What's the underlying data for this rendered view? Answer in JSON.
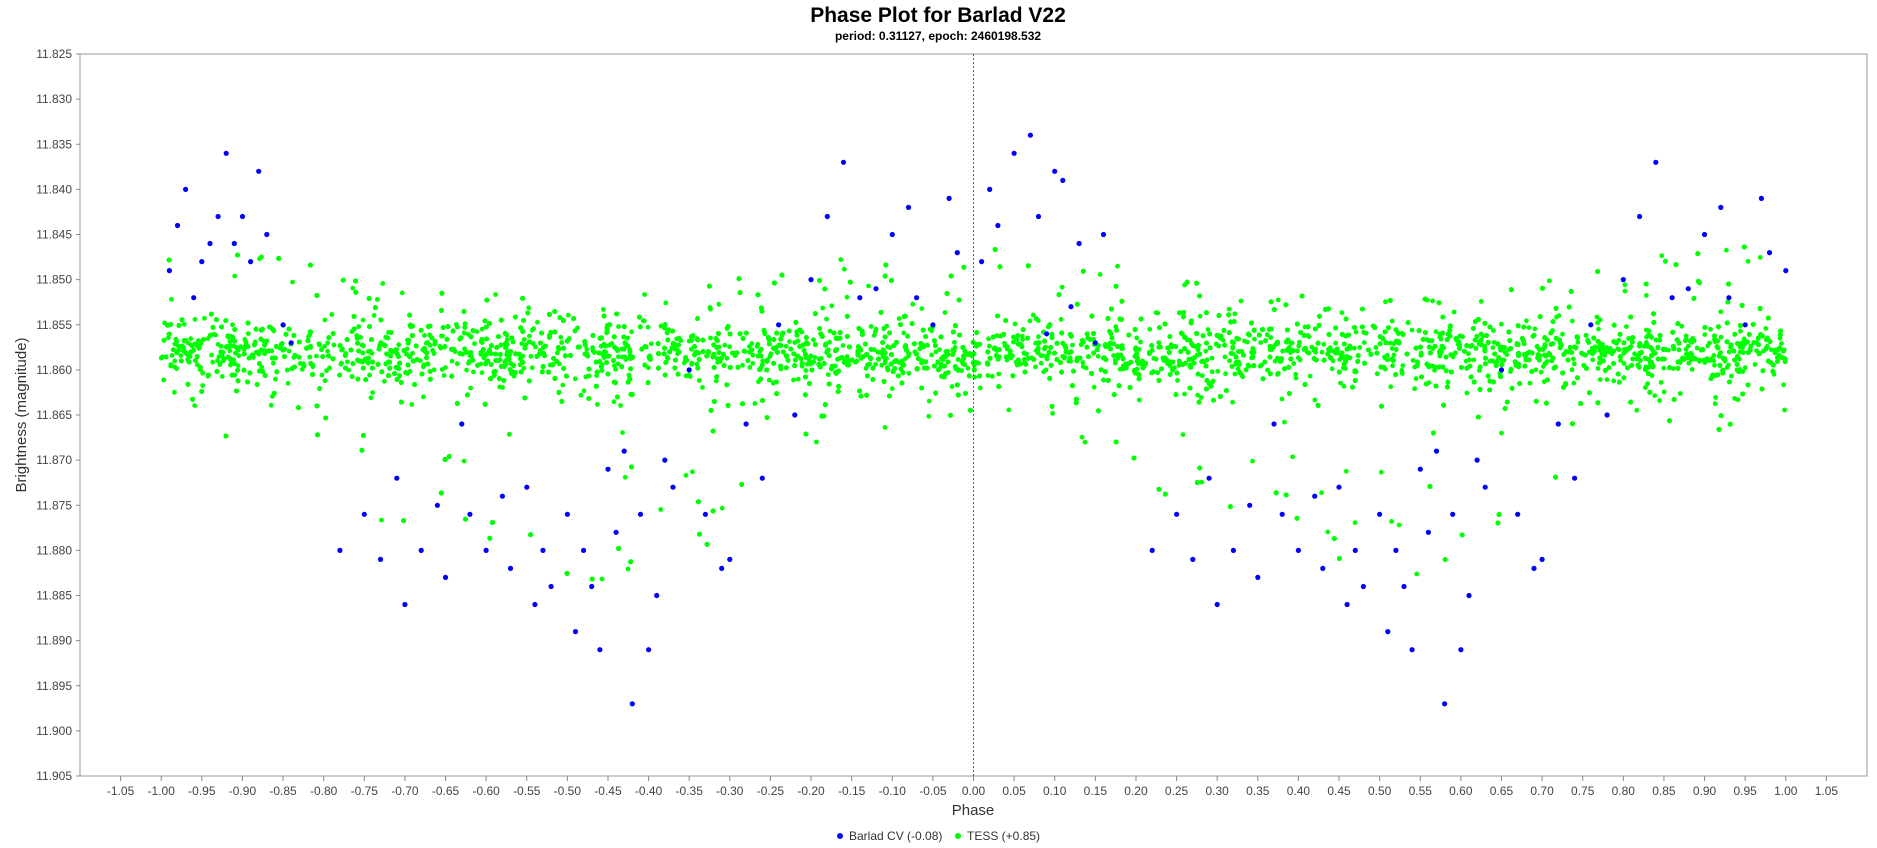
{
  "chart_data": {
    "type": "scatter",
    "title": "Phase Plot for Barlad V22",
    "subtitle": "period: 0.31127, epoch: 2460198.532",
    "xlabel": "Phase",
    "ylabel": "Brightness (magnitude)",
    "xlim": [
      -1.1,
      1.1
    ],
    "ylim": [
      11.825,
      11.905
    ],
    "y_inverted": true,
    "x_ticks": [
      -1.05,
      -1.0,
      -0.95,
      -0.9,
      -0.85,
      -0.8,
      -0.75,
      -0.7,
      -0.65,
      -0.6,
      -0.55,
      -0.5,
      -0.45,
      -0.4,
      -0.35,
      -0.3,
      -0.25,
      -0.2,
      -0.15,
      -0.1,
      -0.05,
      0.0,
      0.05,
      0.1,
      0.15,
      0.2,
      0.25,
      0.3,
      0.35,
      0.4,
      0.45,
      0.5,
      0.55,
      0.6,
      0.65,
      0.7,
      0.75,
      0.8,
      0.85,
      0.9,
      0.95,
      1.0,
      1.05
    ],
    "x_tick_labels": [
      "-1.05",
      "-1.00",
      "-0.95",
      "-0.90",
      "-0.85",
      "-0.80",
      "-0.75",
      "-0.70",
      "-0.65",
      "-0.60",
      "-0.55",
      "-0.50",
      "-0.45",
      "-0.40",
      "-0.35",
      "-0.30",
      "-0.25",
      "-0.20",
      "-0.15",
      "-0.10",
      "-0.05",
      "0.00",
      "0.05",
      "0.10",
      "0.15",
      "0.20",
      "0.25",
      "0.30",
      "0.35",
      "0.40",
      "0.45",
      "0.50",
      "0.55",
      "0.60",
      "0.65",
      "0.70",
      "0.75",
      "0.80",
      "0.85",
      "0.90",
      "0.95",
      "1.00",
      "1.05"
    ],
    "y_ticks": [
      11.825,
      11.83,
      11.835,
      11.84,
      11.845,
      11.85,
      11.855,
      11.86,
      11.865,
      11.87,
      11.875,
      11.88,
      11.885,
      11.89,
      11.895,
      11.9,
      11.905
    ],
    "y_tick_labels": [
      "11.825",
      "11.830",
      "11.835",
      "11.840",
      "11.845",
      "11.850",
      "11.855",
      "11.860",
      "11.865",
      "11.870",
      "11.875",
      "11.880",
      "11.885",
      "11.890",
      "11.895",
      "11.900",
      "11.905"
    ],
    "reference_line_x": 0.0,
    "grid": false,
    "legend_position": "bottom-center",
    "series": [
      {
        "name": "Barlad CV (-0.08)",
        "color": "#0000ff",
        "marker": "circle",
        "x": [
          -0.99,
          -0.98,
          -0.97,
          -0.96,
          -0.95,
          -0.94,
          -0.93,
          -0.92,
          -0.91,
          -0.9,
          -0.89,
          -0.88,
          -0.87,
          -0.85,
          -0.84,
          -0.78,
          -0.75,
          -0.73,
          -0.71,
          -0.7,
          -0.68,
          -0.66,
          -0.65,
          -0.63,
          -0.62,
          -0.6,
          -0.58,
          -0.57,
          -0.55,
          -0.54,
          -0.53,
          -0.52,
          -0.5,
          -0.49,
          -0.48,
          -0.47,
          -0.46,
          -0.45,
          -0.44,
          -0.43,
          -0.42,
          -0.41,
          -0.4,
          -0.39,
          -0.38,
          -0.37,
          -0.35,
          -0.33,
          -0.31,
          -0.3,
          -0.28,
          -0.26,
          -0.24,
          -0.22,
          -0.2,
          -0.18,
          -0.16,
          -0.14,
          -0.12,
          -0.1,
          -0.08,
          -0.07,
          -0.05,
          -0.03,
          -0.02,
          0.01,
          0.02,
          0.03,
          0.05,
          0.07,
          0.08,
          0.09,
          0.1,
          0.11,
          0.12,
          0.13,
          0.15,
          0.16,
          0.22,
          0.25,
          0.27,
          0.29,
          0.3,
          0.32,
          0.34,
          0.35,
          0.37,
          0.38,
          0.4,
          0.42,
          0.43,
          0.45,
          0.46,
          0.47,
          0.48,
          0.5,
          0.51,
          0.52,
          0.53,
          0.54,
          0.55,
          0.56,
          0.57,
          0.58,
          0.59,
          0.6,
          0.61,
          0.62,
          0.63,
          0.65,
          0.67,
          0.69,
          0.7,
          0.72,
          0.74,
          0.76,
          0.78,
          0.8,
          0.82,
          0.84,
          0.86,
          0.88,
          0.9,
          0.92,
          0.93,
          0.95,
          0.97,
          0.98,
          1.0
        ],
        "y": [
          11.849,
          11.844,
          11.84,
          11.852,
          11.848,
          11.846,
          11.843,
          11.836,
          11.846,
          11.843,
          11.848,
          11.838,
          11.845,
          11.855,
          11.857,
          11.88,
          11.876,
          11.881,
          11.872,
          11.886,
          11.88,
          11.875,
          11.883,
          11.866,
          11.876,
          11.88,
          11.874,
          11.882,
          11.873,
          11.886,
          11.88,
          11.884,
          11.876,
          11.889,
          11.88,
          11.884,
          11.891,
          11.871,
          11.878,
          11.869,
          11.897,
          11.876,
          11.891,
          11.885,
          11.87,
          11.873,
          11.86,
          11.876,
          11.882,
          11.881,
          11.866,
          11.872,
          11.855,
          11.865,
          11.85,
          11.843,
          11.837,
          11.852,
          11.851,
          11.845,
          11.842,
          11.852,
          11.855,
          11.841,
          11.847,
          11.848,
          11.84,
          11.844,
          11.836,
          11.834,
          11.843,
          11.856,
          11.838,
          11.839,
          11.853,
          11.846,
          11.857,
          11.845,
          11.88,
          11.876,
          11.881,
          11.872,
          11.886,
          11.88,
          11.875,
          11.883,
          11.866,
          11.876,
          11.88,
          11.874,
          11.882,
          11.873,
          11.886,
          11.88,
          11.884,
          11.876,
          11.889,
          11.88,
          11.884,
          11.891,
          11.871,
          11.878,
          11.869,
          11.897,
          11.876,
          11.891,
          11.885,
          11.87,
          11.873,
          11.86,
          11.876,
          11.882,
          11.881,
          11.866,
          11.872,
          11.855,
          11.865,
          11.85,
          11.843,
          11.837,
          11.852,
          11.851,
          11.845,
          11.842,
          11.852,
          11.855,
          11.841,
          11.847,
          11.849
        ]
      },
      {
        "name": "TESS (+0.85)",
        "color": "#00ff00",
        "marker": "circle",
        "x_range": [
          -1.0,
          1.0
        ],
        "baseline_magnitude": 11.858,
        "phase": [
          -1.0,
          -0.95,
          -0.9,
          -0.85,
          -0.8,
          -0.75,
          -0.7,
          -0.65,
          -0.6,
          -0.55,
          -0.5,
          -0.45,
          -0.4,
          -0.35,
          -0.3,
          -0.25,
          -0.2,
          -0.15,
          -0.1,
          -0.05,
          0.0,
          0.05,
          0.1,
          0.15,
          0.2,
          0.25,
          0.3,
          0.35,
          0.4,
          0.45,
          0.5,
          0.55,
          0.6,
          0.65,
          0.7,
          0.75,
          0.8,
          0.85,
          0.9,
          0.95,
          1.0
        ],
        "band_top": [
          11.846,
          11.845,
          11.846,
          11.847,
          11.849,
          11.85,
          11.85,
          11.851,
          11.851,
          11.852,
          11.852,
          11.852,
          11.851,
          11.851,
          11.85,
          11.849,
          11.848,
          11.847,
          11.846,
          11.846,
          11.846,
          11.846,
          11.846,
          11.847,
          11.849,
          11.85,
          11.85,
          11.851,
          11.851,
          11.852,
          11.852,
          11.852,
          11.851,
          11.851,
          11.85,
          11.849,
          11.848,
          11.847,
          11.846,
          11.846,
          11.846
        ],
        "band_bottom": [
          11.866,
          11.868,
          11.869,
          11.871,
          11.873,
          11.876,
          11.878,
          11.88,
          11.881,
          11.883,
          11.884,
          11.884,
          11.883,
          11.881,
          11.878,
          11.875,
          11.872,
          11.869,
          11.867,
          11.866,
          11.866,
          11.866,
          11.867,
          11.869,
          11.872,
          11.875,
          11.878,
          11.88,
          11.881,
          11.883,
          11.884,
          11.884,
          11.883,
          11.881,
          11.878,
          11.875,
          11.872,
          11.869,
          11.867,
          11.866,
          11.866
        ]
      }
    ]
  }
}
